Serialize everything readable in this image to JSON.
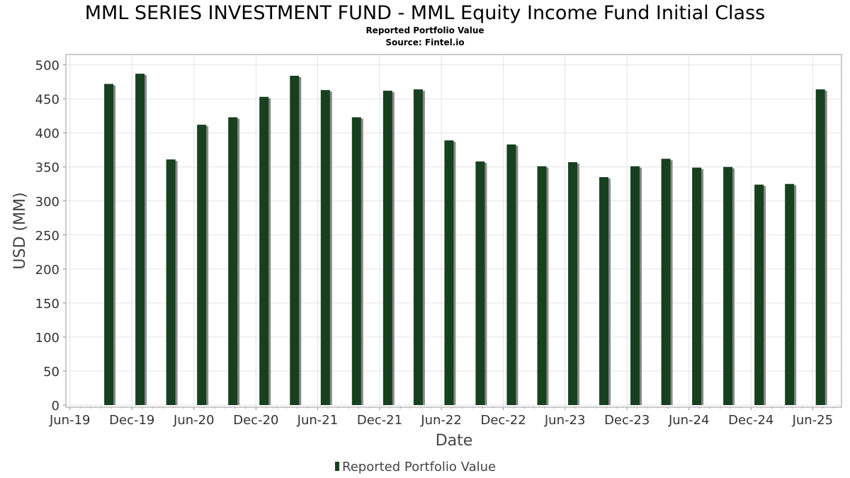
{
  "chart_data": {
    "type": "bar",
    "title": "MML SERIES INVESTMENT FUND - MML Equity Income Fund Initial Class",
    "subtitle": "Reported Portfolio Value",
    "source": "Source: Fintel.io",
    "xlabel": "Date",
    "ylabel": "USD (MM)",
    "ylim": [
      0,
      510
    ],
    "yticks": [
      0,
      50,
      100,
      150,
      200,
      250,
      300,
      350,
      400,
      450,
      500
    ],
    "xlim": [
      "2019-05-20",
      "2025-08-25"
    ],
    "xticks": [
      {
        "label": "Jun-19",
        "date": "2019-06-01"
      },
      {
        "label": "Dec-19",
        "date": "2019-12-01"
      },
      {
        "label": "Jun-20",
        "date": "2020-06-01"
      },
      {
        "label": "Dec-20",
        "date": "2020-12-01"
      },
      {
        "label": "Jun-21",
        "date": "2021-06-01"
      },
      {
        "label": "Dec-21",
        "date": "2021-12-01"
      },
      {
        "label": "Jun-22",
        "date": "2022-06-01"
      },
      {
        "label": "Dec-22",
        "date": "2022-12-01"
      },
      {
        "label": "Jun-23",
        "date": "2023-06-01"
      },
      {
        "label": "Dec-23",
        "date": "2023-12-01"
      },
      {
        "label": "Jun-24",
        "date": "2024-06-01"
      },
      {
        "label": "Dec-24",
        "date": "2024-12-01"
      },
      {
        "label": "Jun-25",
        "date": "2025-06-01"
      }
    ],
    "grid": true,
    "legend_position": "bottom-center",
    "series": [
      {
        "name": "Reported Portfolio Value",
        "color": "#17401f",
        "shadow_color": "#8a8a8a",
        "points": [
          {
            "date": "2019-09-30",
            "value": 472
          },
          {
            "date": "2019-12-31",
            "value": 487
          },
          {
            "date": "2020-03-31",
            "value": 361
          },
          {
            "date": "2020-06-30",
            "value": 412
          },
          {
            "date": "2020-09-30",
            "value": 423
          },
          {
            "date": "2020-12-31",
            "value": 453
          },
          {
            "date": "2021-03-31",
            "value": 484
          },
          {
            "date": "2021-06-30",
            "value": 463
          },
          {
            "date": "2021-09-30",
            "value": 423
          },
          {
            "date": "2021-12-31",
            "value": 462
          },
          {
            "date": "2022-03-31",
            "value": 464
          },
          {
            "date": "2022-06-30",
            "value": 389
          },
          {
            "date": "2022-09-30",
            "value": 358
          },
          {
            "date": "2022-12-31",
            "value": 383
          },
          {
            "date": "2023-03-31",
            "value": 351
          },
          {
            "date": "2023-06-30",
            "value": 357
          },
          {
            "date": "2023-09-30",
            "value": 335
          },
          {
            "date": "2023-12-31",
            "value": 351
          },
          {
            "date": "2024-03-31",
            "value": 362
          },
          {
            "date": "2024-06-30",
            "value": 349
          },
          {
            "date": "2024-09-30",
            "value": 350
          },
          {
            "date": "2024-12-31",
            "value": 324
          },
          {
            "date": "2025-03-31",
            "value": 325
          },
          {
            "date": "2025-06-30",
            "value": 464
          }
        ]
      }
    ]
  }
}
